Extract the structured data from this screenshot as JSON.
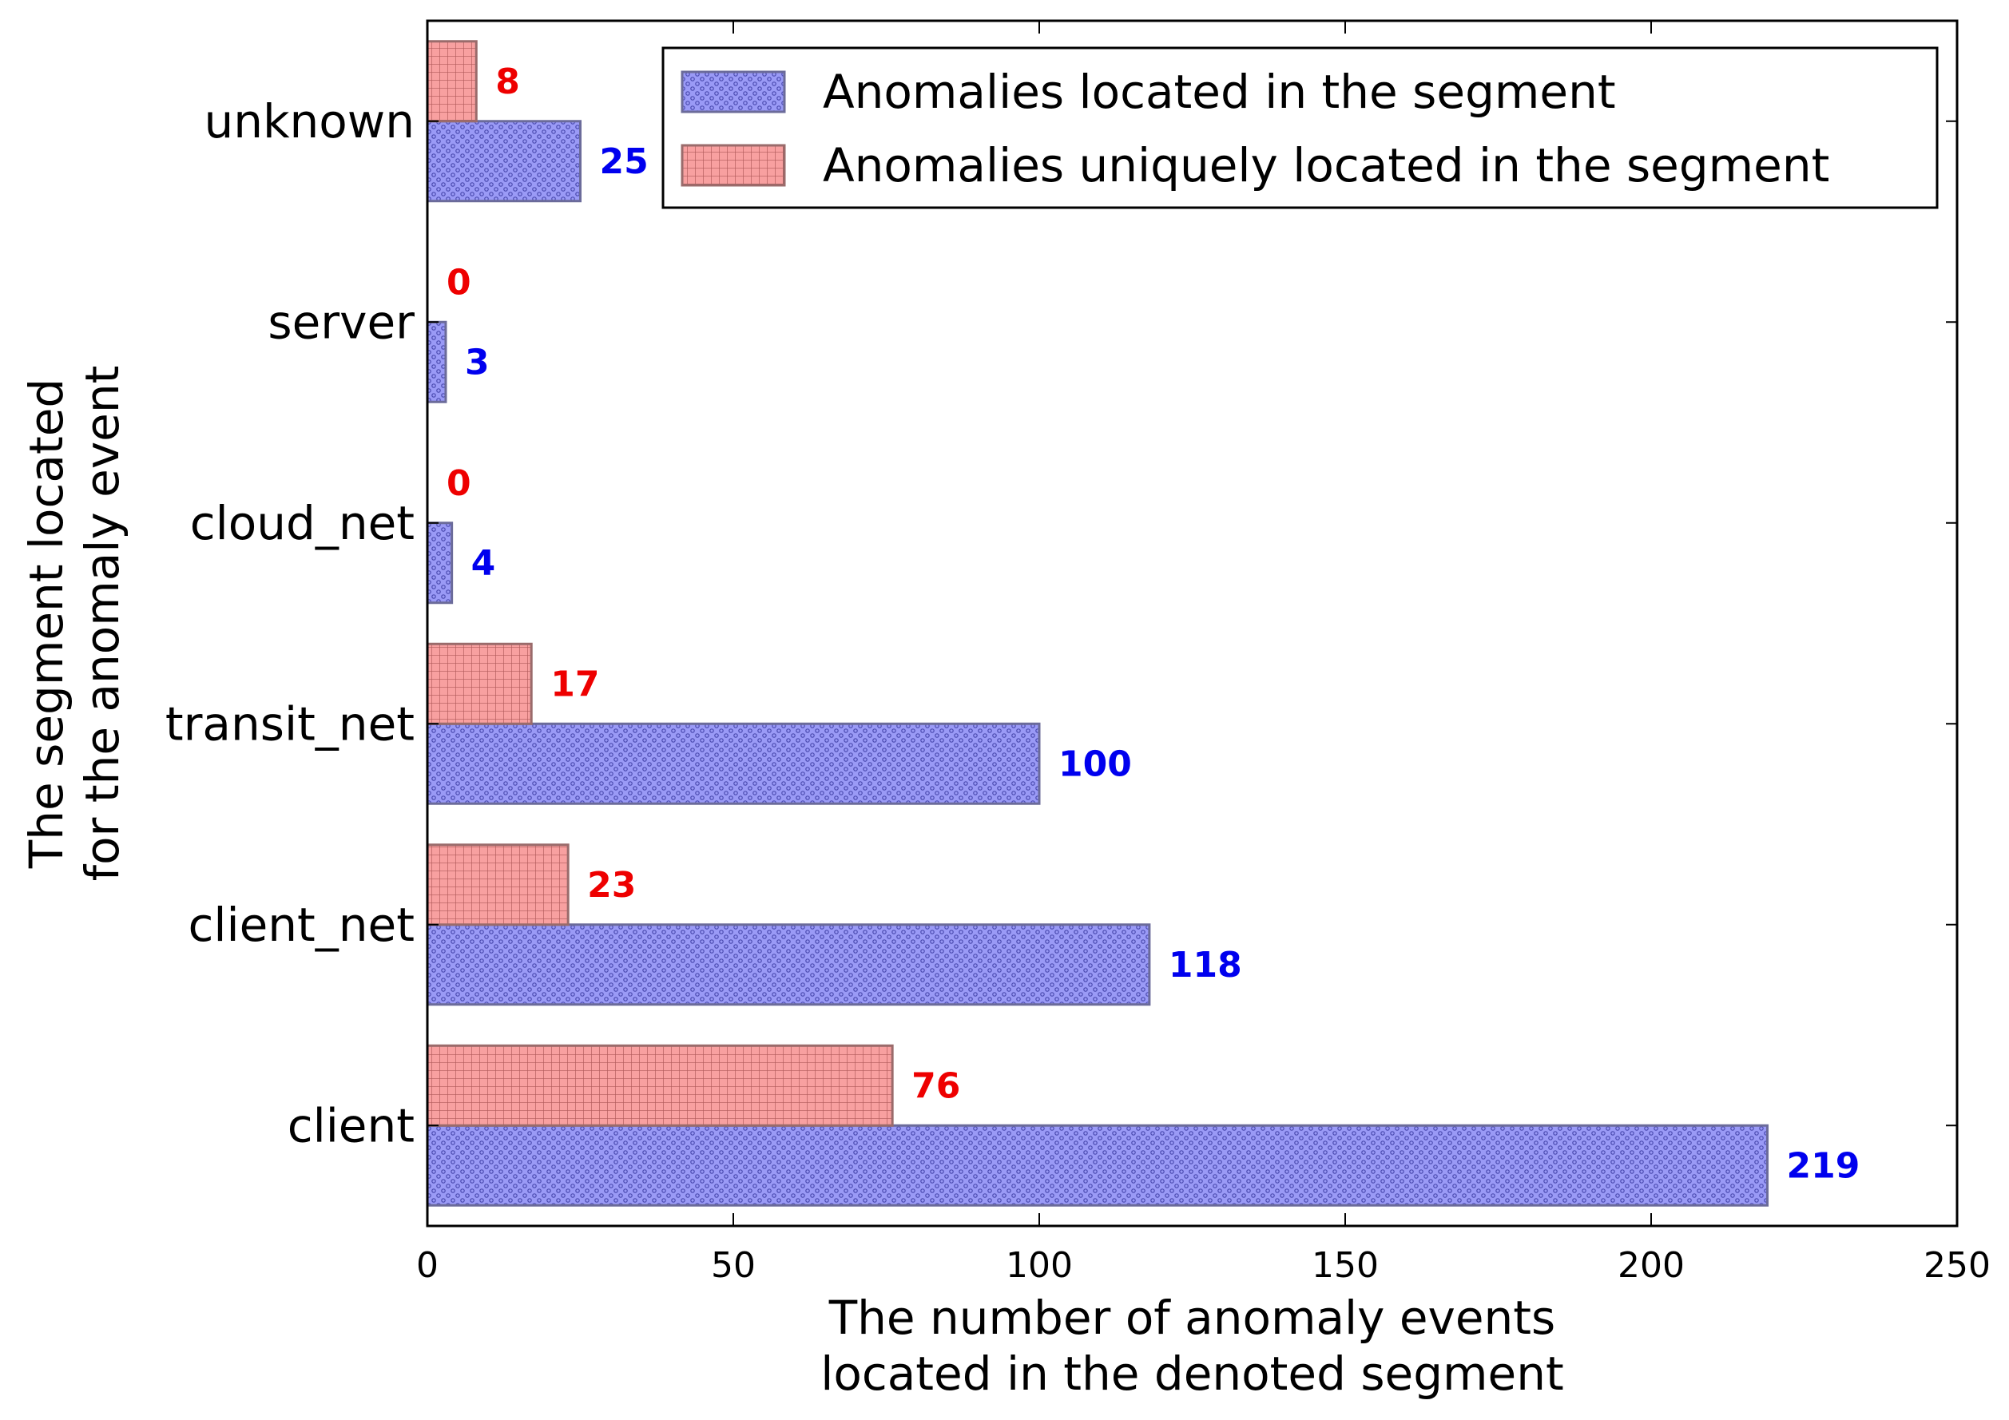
{
  "chart_data": {
    "type": "bar",
    "orientation": "horizontal",
    "categories": [
      "client",
      "client_net",
      "transit_net",
      "cloud_net",
      "server",
      "unknown"
    ],
    "series": [
      {
        "name": "Anomalies located in the segment",
        "values": [
          219,
          118,
          100,
          4,
          3,
          25
        ],
        "color": "#8080f0",
        "label_color": "#0000ee",
        "pattern": "dots"
      },
      {
        "name": "Anomalies uniquely located in the segment",
        "values": [
          76,
          23,
          17,
          0,
          0,
          8
        ],
        "color": "#f89090",
        "label_color": "#ee0000",
        "pattern": "grid"
      }
    ],
    "xlabel": [
      "The number of anomaly events",
      "located in the denoted segment"
    ],
    "ylabel": [
      "The segment located",
      "for the anomaly event"
    ],
    "xlim": [
      0,
      250
    ],
    "xticks": [
      0,
      50,
      100,
      150,
      200,
      250
    ],
    "grid": false,
    "legend_position": "upper-right"
  }
}
